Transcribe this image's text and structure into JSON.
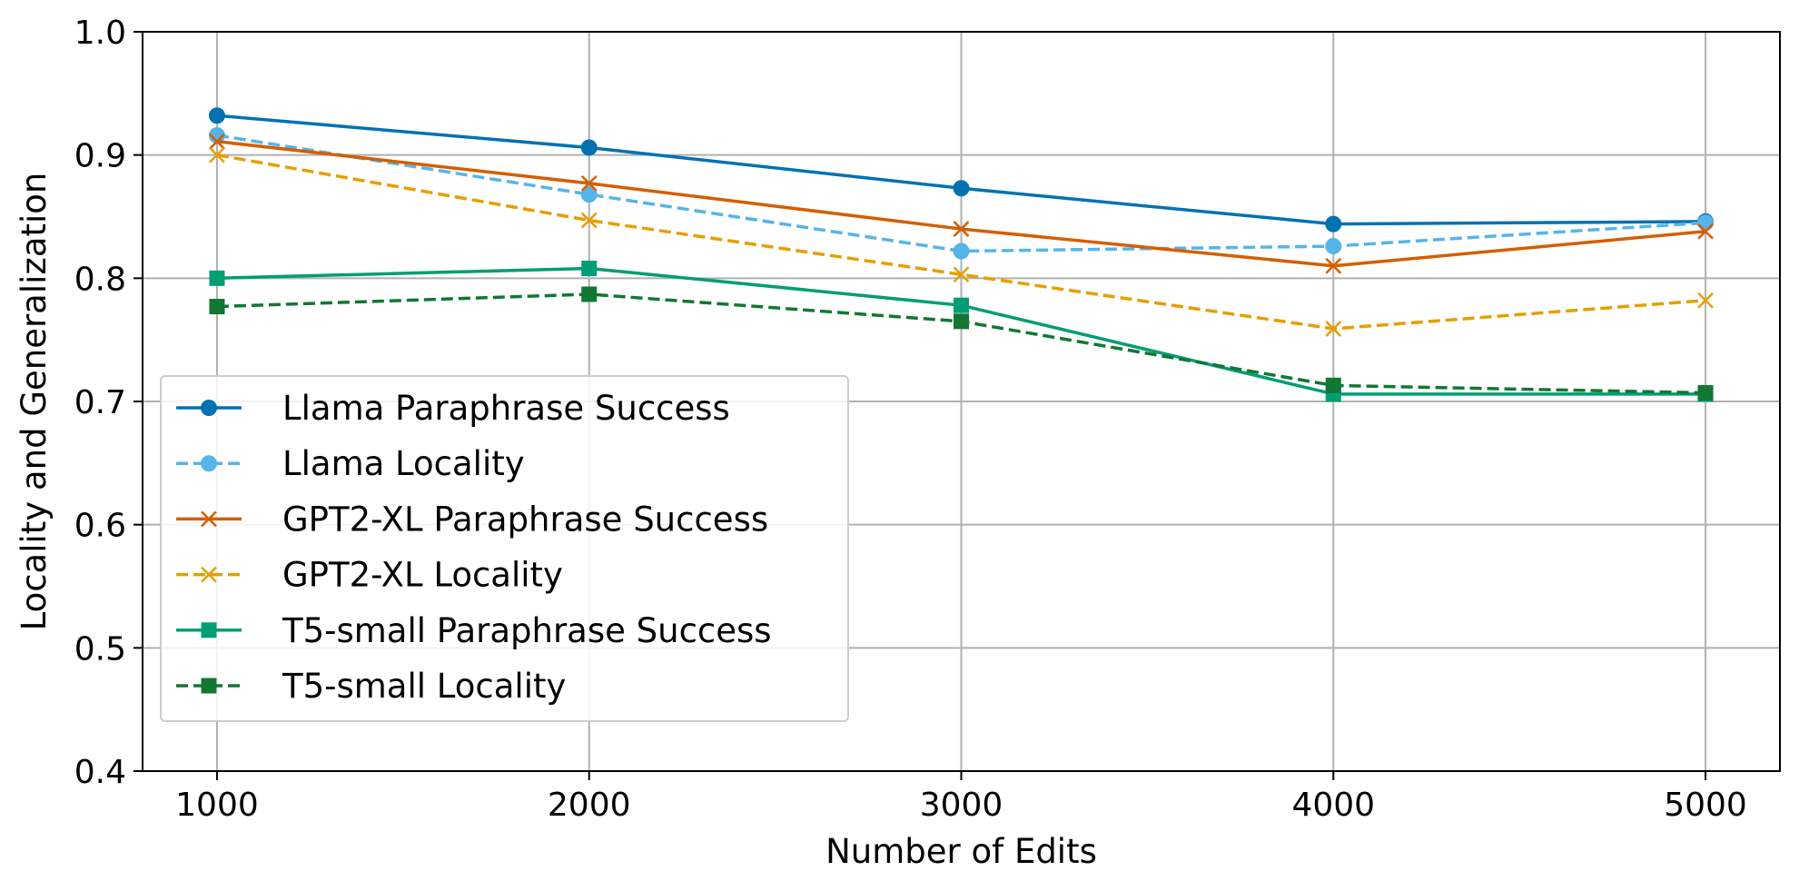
{
  "chart_data": {
    "type": "line",
    "xlabel": "Number of Edits",
    "ylabel": "Locality and Generalization",
    "x": [
      1000,
      2000,
      3000,
      4000,
      5000
    ],
    "xticks": [
      "1000",
      "2000",
      "3000",
      "4000",
      "5000"
    ],
    "yticks": [
      "0.4",
      "0.5",
      "0.6",
      "0.7",
      "0.8",
      "0.9",
      "1.0"
    ],
    "xlim": [
      800,
      5200
    ],
    "ylim": [
      0.4,
      1.0
    ],
    "grid": true,
    "legend_position": "lower-left",
    "series": [
      {
        "name": "Llama Paraphrase Success",
        "values": [
          0.932,
          0.906,
          0.873,
          0.844,
          0.846
        ],
        "color": "#0072b2",
        "dash": "solid",
        "marker": "circle"
      },
      {
        "name": "Llama Locality",
        "values": [
          0.916,
          0.868,
          0.822,
          0.826,
          0.845
        ],
        "color": "#56b4e9",
        "dash": "dashed",
        "marker": "circle"
      },
      {
        "name": "GPT2-XL Paraphrase Success",
        "values": [
          0.911,
          0.877,
          0.84,
          0.81,
          0.838
        ],
        "color": "#d55e00",
        "dash": "solid",
        "marker": "x"
      },
      {
        "name": "GPT2-XL Locality",
        "values": [
          0.9,
          0.847,
          0.803,
          0.759,
          0.782
        ],
        "color": "#e69f00",
        "dash": "dashed",
        "marker": "x"
      },
      {
        "name": "T5-small Paraphrase Success",
        "values": [
          0.8,
          0.808,
          0.778,
          0.706,
          0.706
        ],
        "color": "#009e73",
        "dash": "solid",
        "marker": "square"
      },
      {
        "name": "T5-small Locality",
        "values": [
          0.777,
          0.787,
          0.765,
          0.713,
          0.707
        ],
        "color": "#117733",
        "dash": "dashed",
        "marker": "square"
      }
    ]
  }
}
